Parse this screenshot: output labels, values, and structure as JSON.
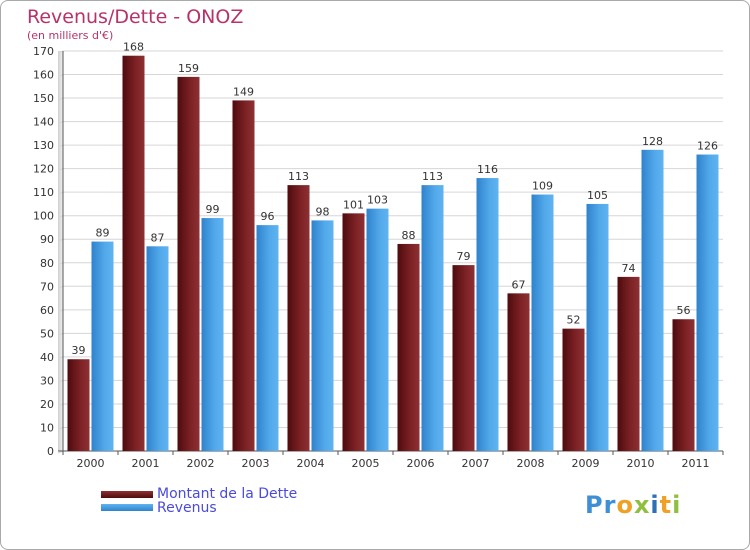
{
  "title": "Revenus/Dette - ONOZ",
  "subtitle": "(en milliers d'€)",
  "logo": "Proxiti",
  "colors": {
    "debt": "#7a1f22",
    "revenue": "#4aa3e6",
    "title": "#b8326a",
    "legend_text": "#4a4adf"
  },
  "legend": {
    "debt_label": "Montant de la Dette",
    "revenue_label": "Revenus"
  },
  "chart_data": {
    "type": "bar",
    "title": "Revenus/Dette - ONOZ",
    "subtitle": "(en milliers d'€)",
    "categories": [
      "2000",
      "2001",
      "2002",
      "2003",
      "2004",
      "2005",
      "2006",
      "2007",
      "2008",
      "2009",
      "2010",
      "2011"
    ],
    "series": [
      {
        "name": "Montant de la Dette",
        "values": [
          39,
          168,
          159,
          149,
          113,
          101,
          88,
          79,
          67,
          52,
          74,
          56
        ]
      },
      {
        "name": "Revenus",
        "values": [
          89,
          87,
          99,
          96,
          98,
          103,
          113,
          116,
          109,
          105,
          128,
          126
        ]
      }
    ],
    "yticks": [
      0,
      10,
      20,
      30,
      40,
      50,
      60,
      70,
      80,
      90,
      100,
      110,
      120,
      130,
      140,
      150,
      160,
      170
    ],
    "ylim": [
      0,
      170
    ],
    "xlabel": "",
    "ylabel": "",
    "grid": true,
    "legend_position": "bottom-left"
  }
}
